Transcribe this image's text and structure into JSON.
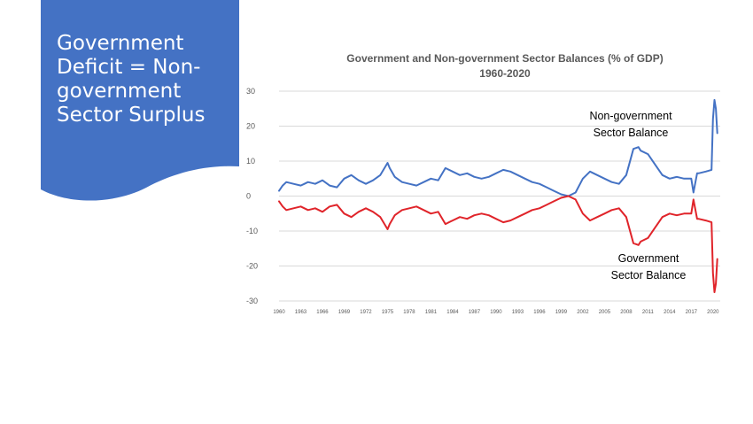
{
  "banner": {
    "title": "Government Deficit = Non-government Sector Surplus",
    "color": "#4472C4"
  },
  "chart_data": {
    "type": "line",
    "title_line1": "Government and Non-government Sector Balances (% of GDP)",
    "title_line2": "1960-2020",
    "ylim": [
      -30,
      30
    ],
    "y_ticks": [
      30,
      20,
      10,
      0,
      -10,
      -20,
      -30
    ],
    "x_range": [
      1960,
      2021
    ],
    "x_ticks": [
      "1960",
      "1963",
      "1966",
      "1969",
      "1972",
      "1975",
      "1978",
      "1981",
      "1984",
      "1987",
      "1990",
      "1993",
      "1996",
      "1999",
      "2002",
      "2005",
      "2008",
      "2011",
      "2014",
      "2017",
      "2020"
    ],
    "grid": true,
    "annotations": [
      {
        "lines": [
          "Non-government",
          "Sector Balance"
        ]
      },
      {
        "lines": [
          "Government",
          "Sector Balance"
        ]
      }
    ],
    "series": [
      {
        "id": "non_government",
        "color": "#4472C4",
        "x": [
          1960,
          1960.5,
          1961,
          1962,
          1963,
          1963.5,
          1964,
          1965,
          1966,
          1967,
          1968,
          1969,
          1970,
          1971,
          1972,
          1973,
          1974,
          1975,
          1975.3,
          1976,
          1977,
          1978,
          1979,
          1980,
          1981,
          1982,
          1983,
          1984,
          1985,
          1986,
          1987,
          1988,
          1989,
          1990,
          1991,
          1992,
          1993,
          1994,
          1995,
          1996,
          1997,
          1998,
          1999,
          2000,
          2001,
          2002,
          2003,
          2004,
          2005,
          2006,
          2007,
          2008,
          2009,
          2009.7,
          2010,
          2011,
          2012,
          2013,
          2014,
          2015,
          2016,
          2017,
          2017.3,
          2017.8,
          2018,
          2019,
          2019.8,
          2020,
          2020.2,
          2020.4,
          2020.6
        ],
        "y": [
          1.5,
          3,
          4,
          3.5,
          3,
          3.5,
          4,
          3.5,
          4.5,
          3,
          2.5,
          5,
          6,
          4.5,
          3.5,
          4.5,
          6,
          9.5,
          8,
          5.5,
          4,
          3.5,
          3,
          4,
          5,
          4.5,
          8,
          7,
          6,
          6.5,
          5.5,
          5,
          5.5,
          6.5,
          7.5,
          7,
          6,
          5,
          4,
          3.5,
          2.5,
          1.5,
          0.5,
          0,
          1,
          5,
          7,
          6,
          5,
          4,
          3.5,
          6,
          13.5,
          14,
          13,
          12,
          9,
          6,
          5,
          5.5,
          5,
          5,
          1,
          6.5,
          6.5,
          7,
          7.5,
          22,
          27.5,
          25,
          18
        ]
      },
      {
        "id": "government",
        "color": "#E0242A",
        "x": [
          1960,
          1960.5,
          1961,
          1962,
          1963,
          1963.5,
          1964,
          1965,
          1966,
          1967,
          1968,
          1969,
          1970,
          1971,
          1972,
          1973,
          1974,
          1975,
          1975.3,
          1976,
          1977,
          1978,
          1979,
          1980,
          1981,
          1982,
          1983,
          1984,
          1985,
          1986,
          1987,
          1988,
          1989,
          1990,
          1991,
          1992,
          1993,
          1994,
          1995,
          1996,
          1997,
          1998,
          1999,
          2000,
          2001,
          2002,
          2003,
          2004,
          2005,
          2006,
          2007,
          2008,
          2009,
          2009.7,
          2010,
          2011,
          2012,
          2013,
          2014,
          2015,
          2016,
          2017,
          2017.3,
          2017.8,
          2018,
          2019,
          2019.8,
          2020,
          2020.2,
          2020.4,
          2020.6
        ],
        "y": [
          -1.5,
          -3,
          -4,
          -3.5,
          -3,
          -3.5,
          -4,
          -3.5,
          -4.5,
          -3,
          -2.5,
          -5,
          -6,
          -4.5,
          -3.5,
          -4.5,
          -6,
          -9.5,
          -8,
          -5.5,
          -4,
          -3.5,
          -3,
          -4,
          -5,
          -4.5,
          -8,
          -7,
          -6,
          -6.5,
          -5.5,
          -5,
          -5.5,
          -6.5,
          -7.5,
          -7,
          -6,
          -5,
          -4,
          -3.5,
          -2.5,
          -1.5,
          -0.5,
          0,
          -1,
          -5,
          -7,
          -6,
          -5,
          -4,
          -3.5,
          -6,
          -13.5,
          -14,
          -13,
          -12,
          -9,
          -6,
          -5,
          -5.5,
          -5,
          -5,
          -1,
          -6.5,
          -6.5,
          -7,
          -7.5,
          -22,
          -27.5,
          -25,
          -18
        ]
      }
    ]
  }
}
